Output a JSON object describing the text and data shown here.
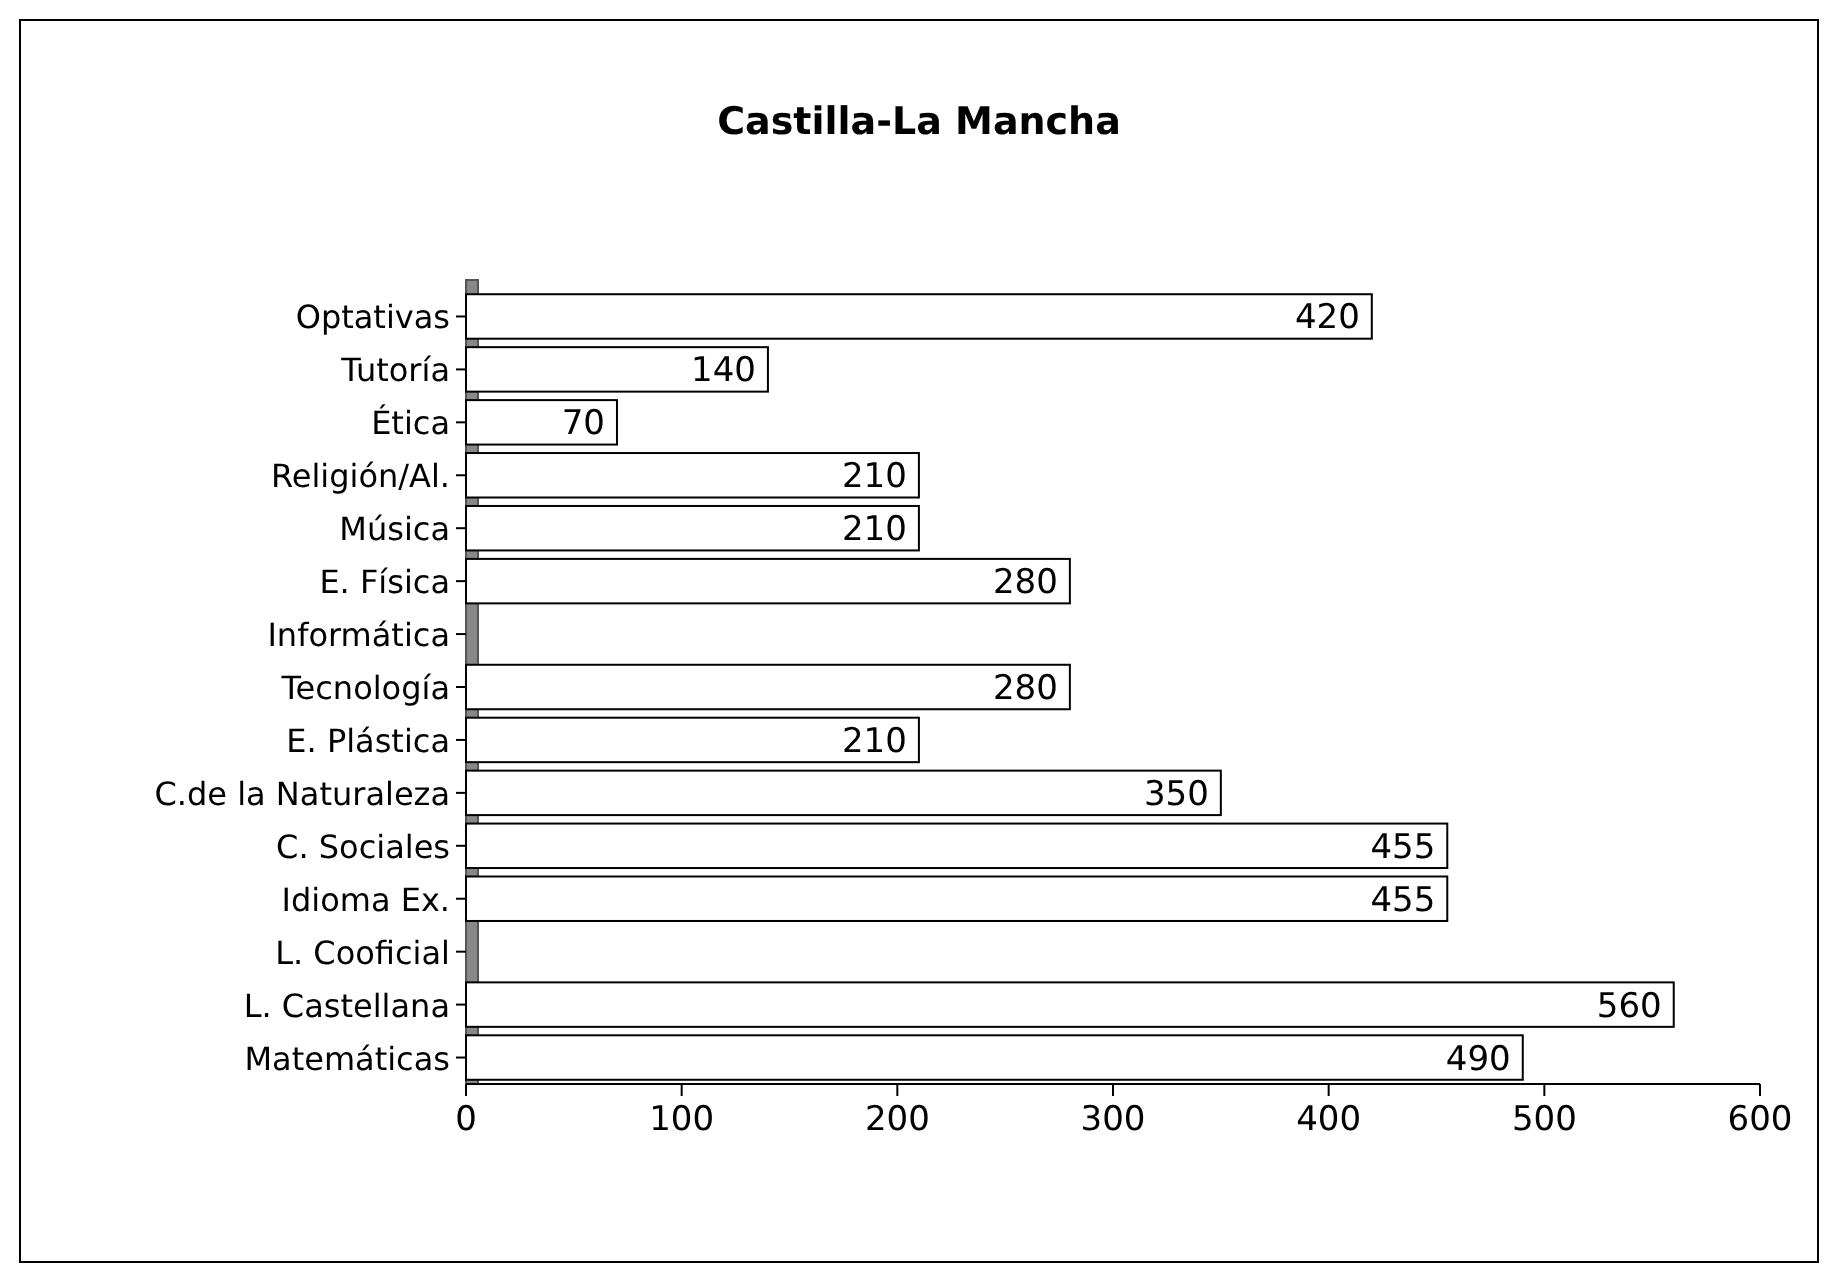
{
  "chart_data": {
    "type": "bar",
    "orientation": "horizontal",
    "title": "Castilla-La Mancha",
    "categories": [
      "Optativas",
      "Tutoría",
      "Ética",
      "Religión/Al.",
      "Música",
      "E. Física",
      "Informática",
      "Tecnología",
      "E. Plástica",
      "C.de la Naturaleza",
      "C. Sociales",
      "Idioma Ex.",
      "L. Cooficial",
      "L. Castellana",
      "Matemáticas"
    ],
    "values": [
      420,
      140,
      70,
      210,
      210,
      280,
      null,
      280,
      210,
      350,
      455,
      455,
      null,
      560,
      490
    ],
    "color": "#ffffff",
    "xlim": [
      0,
      600
    ],
    "xticks": [
      0,
      100,
      200,
      300,
      400,
      500,
      600
    ],
    "data_labels": true
  }
}
